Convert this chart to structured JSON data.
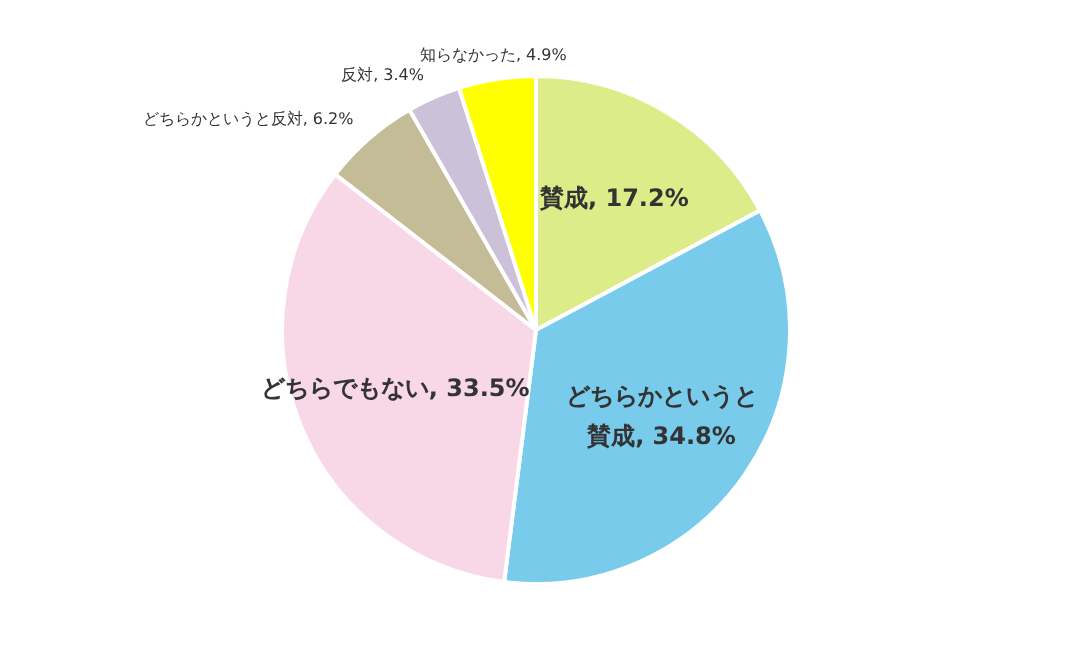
{
  "chart_data": {
    "type": "pie",
    "categories": [
      "賛成",
      "どちらかというと賛成",
      "どちらでもない",
      "どちらかというと反対",
      "反対",
      "知らなかった"
    ],
    "values": [
      17.2,
      34.8,
      33.5,
      6.2,
      3.4,
      4.9
    ],
    "value_labels": [
      "17.2%",
      "34.8%",
      "33.5%",
      "6.2%",
      "3.4%",
      "4.9%"
    ],
    "colors": [
      "#dcec88",
      "#79cbeb",
      "#f8d8e7",
      "#c4bc96",
      "#cdc1da",
      "#ffff00"
    ],
    "legend": false
  }
}
